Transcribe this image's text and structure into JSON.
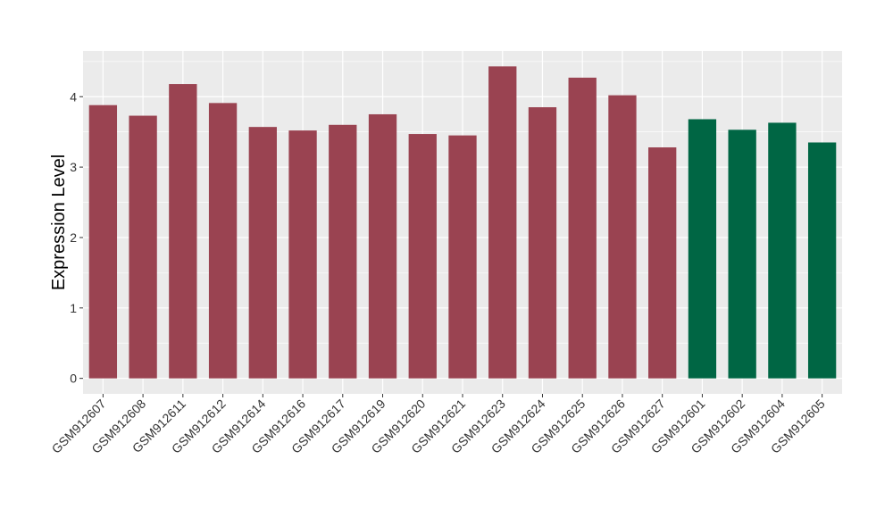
{
  "chart_data": {
    "type": "bar",
    "title": "",
    "xlabel": "",
    "ylabel": "Expression Level",
    "ylim": [
      -0.22,
      4.65
    ],
    "y_ticks": [
      0,
      1,
      2,
      3,
      4
    ],
    "grid": true,
    "categories": [
      "GSM912607",
      "GSM912608",
      "GSM912611",
      "GSM912612",
      "GSM912614",
      "GSM912616",
      "GSM912617",
      "GSM912619",
      "GSM912620",
      "GSM912621",
      "GSM912623",
      "GSM912624",
      "GSM912625",
      "GSM912626",
      "GSM912627",
      "GSM912601",
      "GSM912602",
      "GSM912604",
      "GSM912605"
    ],
    "values": [
      3.88,
      3.73,
      4.18,
      3.91,
      3.57,
      3.52,
      3.6,
      3.75,
      3.47,
      3.45,
      4.43,
      3.85,
      4.27,
      4.02,
      3.28,
      3.68,
      3.53,
      3.63,
      3.35
    ],
    "bar_colors": [
      "#9a4351",
      "#9a4351",
      "#9a4351",
      "#9a4351",
      "#9a4351",
      "#9a4351",
      "#9a4351",
      "#9a4351",
      "#9a4351",
      "#9a4351",
      "#9a4351",
      "#9a4351",
      "#9a4351",
      "#9a4351",
      "#9a4351",
      "#006644",
      "#006644",
      "#006644",
      "#006644"
    ],
    "panel_background": "#ebebeb",
    "grid_color": "#ffffff"
  }
}
